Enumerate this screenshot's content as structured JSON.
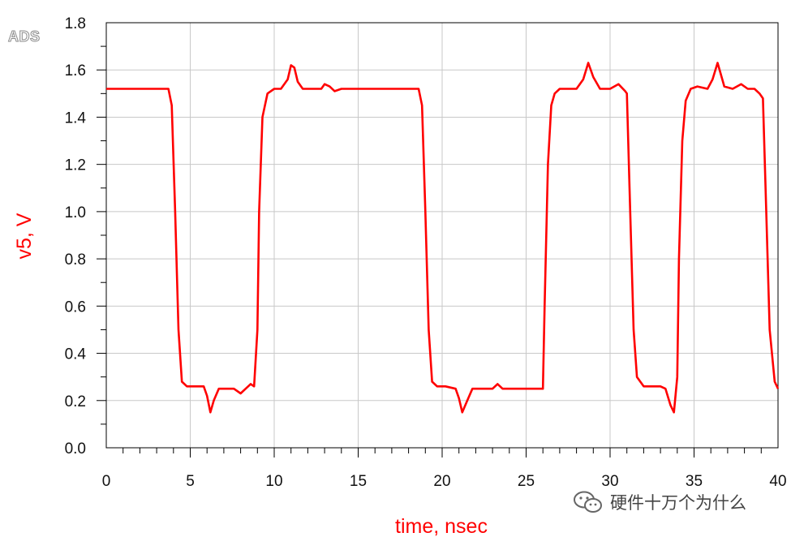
{
  "logo": {
    "text": "ADS"
  },
  "watermark": {
    "text": "硬件十万个为什么",
    "icon": "wechat-icon"
  },
  "colors": {
    "trace": "#ff0000",
    "grid": "#c8c8c8",
    "axis": "#000000"
  },
  "chart_data": {
    "type": "line",
    "xlabel": "time, nsec",
    "ylabel": "v5, V",
    "xlim": [
      0,
      40
    ],
    "ylim": [
      0.0,
      1.8
    ],
    "xticks": [
      "0",
      "5",
      "10",
      "15",
      "20",
      "25",
      "30",
      "35",
      "40"
    ],
    "yticks": [
      "0.0",
      "0.2",
      "0.4",
      "0.6",
      "0.8",
      "1.0",
      "1.2",
      "1.4",
      "1.6",
      "1.8"
    ],
    "grid": true,
    "series": [
      {
        "color": "#ff0000",
        "x": [
          0,
          3.7,
          3.9,
          4.1,
          4.3,
          4.5,
          4.8,
          5.2,
          5.8,
          6.0,
          6.2,
          6.4,
          6.7,
          7.0,
          7.6,
          8.0,
          8.3,
          8.6,
          8.8,
          9.0,
          9.1,
          9.3,
          9.6,
          10.0,
          10.4,
          10.8,
          11.0,
          11.2,
          11.4,
          11.7,
          12.2,
          12.8,
          13.0,
          13.3,
          13.6,
          14.0,
          15.0,
          16.0,
          17.5,
          18.6,
          18.8,
          19.0,
          19.2,
          19.4,
          19.7,
          20.2,
          20.8,
          21.0,
          21.2,
          21.5,
          21.8,
          22.3,
          23.0,
          23.3,
          23.6,
          24.2,
          25.2,
          26.0,
          26.1,
          26.3,
          26.5,
          26.7,
          27.0,
          27.4,
          28.0,
          28.4,
          28.7,
          29.0,
          29.4,
          30.0,
          30.5,
          30.9,
          31.0,
          31.2,
          31.4,
          31.6,
          32.0,
          32.6,
          33.0,
          33.3,
          33.6,
          33.8,
          34.0,
          34.1,
          34.3,
          34.5,
          34.8,
          35.2,
          35.8,
          36.1,
          36.4,
          36.8,
          37.3,
          37.8,
          38.2,
          38.6,
          38.9,
          39.1,
          39.3,
          39.5,
          39.8,
          40.0
        ],
        "y": [
          1.52,
          1.52,
          1.45,
          1.0,
          0.5,
          0.28,
          0.26,
          0.26,
          0.26,
          0.22,
          0.15,
          0.2,
          0.25,
          0.25,
          0.25,
          0.23,
          0.25,
          0.27,
          0.26,
          0.5,
          1.0,
          1.4,
          1.5,
          1.52,
          1.52,
          1.56,
          1.62,
          1.61,
          1.55,
          1.52,
          1.52,
          1.52,
          1.54,
          1.53,
          1.51,
          1.52,
          1.52,
          1.52,
          1.52,
          1.52,
          1.45,
          1.0,
          0.5,
          0.28,
          0.26,
          0.26,
          0.25,
          0.21,
          0.15,
          0.2,
          0.25,
          0.25,
          0.25,
          0.27,
          0.25,
          0.25,
          0.25,
          0.25,
          0.6,
          1.2,
          1.45,
          1.5,
          1.52,
          1.52,
          1.52,
          1.56,
          1.63,
          1.57,
          1.52,
          1.52,
          1.54,
          1.51,
          1.5,
          1.0,
          0.5,
          0.3,
          0.26,
          0.26,
          0.26,
          0.25,
          0.18,
          0.15,
          0.3,
          0.8,
          1.3,
          1.47,
          1.52,
          1.53,
          1.52,
          1.56,
          1.63,
          1.53,
          1.52,
          1.54,
          1.52,
          1.52,
          1.5,
          1.48,
          1.0,
          0.5,
          0.28,
          0.25
        ]
      }
    ]
  }
}
